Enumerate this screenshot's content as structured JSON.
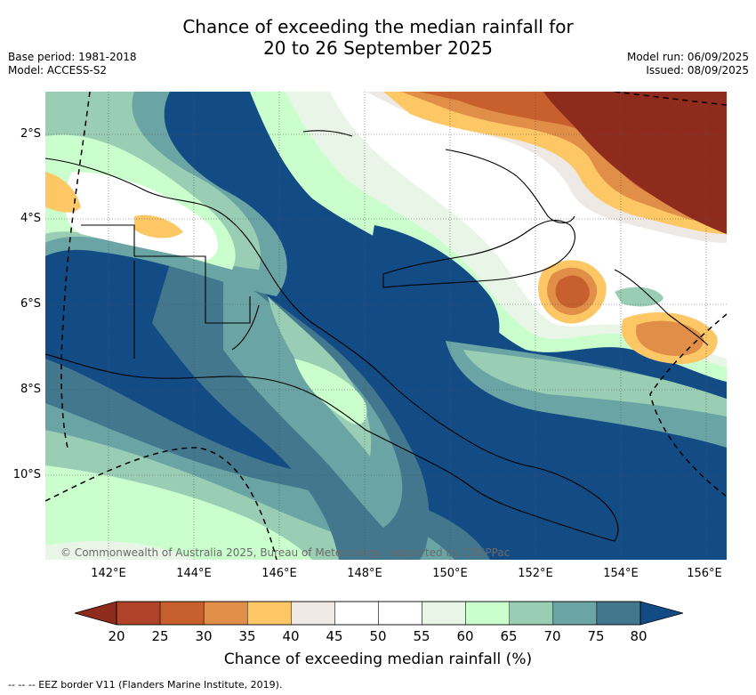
{
  "title_line1": "Chance of exceeding the median rainfall for",
  "title_line2": "20 to 26 September 2025",
  "base_period": "Base period: 1981-2018",
  "model": "Model: ACCESS-S2",
  "model_run": "Model run: 06/09/2025",
  "issued": "Issued: 08/09/2025",
  "copyright": "© Commonwealth of Australia 2025, Bureau of Meteorology, supported by COSPPac",
  "lat_ticks": [
    "2°S",
    "4°S",
    "6°S",
    "8°S",
    "10°S"
  ],
  "lon_ticks": [
    "142°E",
    "144°E",
    "146°E",
    "148°E",
    "150°E",
    "152°E",
    "154°E",
    "156°E"
  ],
  "colorbar": {
    "labels": [
      "20",
      "25",
      "30",
      "35",
      "40",
      "45",
      "50",
      "55",
      "60",
      "65",
      "70",
      "75",
      "80"
    ],
    "low_color": "#8f2b1c",
    "high_color": "#134b85",
    "colors": [
      "#b0432a",
      "#c8602e",
      "#e08e48",
      "#fdc766",
      "#efe9e5",
      "#ffffff",
      "#ffffff",
      "#e9f6e7",
      "#caffcd",
      "#99cdb4",
      "#6aa4a4",
      "#42778e"
    ],
    "label": "Chance of exceeding median rainfall (%)"
  },
  "footer": "-- -- -- EEZ border V11 (Flanders Marine Institute, 2019)."
}
